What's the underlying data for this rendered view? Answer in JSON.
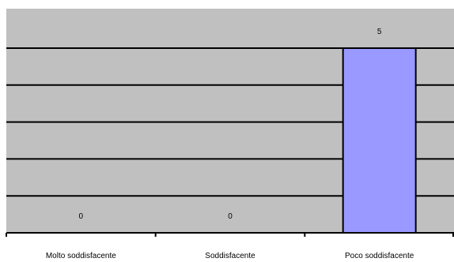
{
  "chart_data": {
    "type": "bar",
    "categories": [
      "Molto soddisfacente",
      "Soddisfacente",
      "Poco soddisfacente"
    ],
    "values": [
      0,
      0,
      5
    ],
    "value_labels": [
      "0",
      "0",
      "5"
    ],
    "ylim": [
      0,
      5
    ],
    "grid": true,
    "plot_background": "#c0c0c0",
    "bar_color": "#9999ff",
    "gridline_color": "#000000"
  }
}
